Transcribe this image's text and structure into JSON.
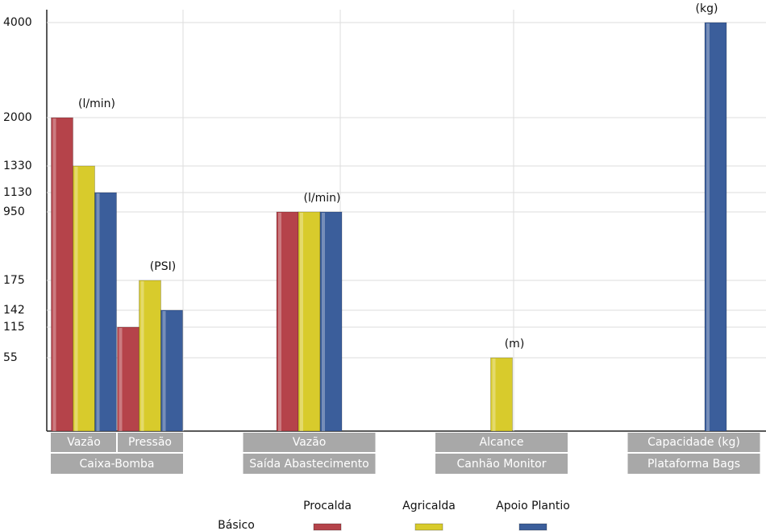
{
  "chart_data": {
    "type": "bar",
    "groups": [
      {
        "name": "Caixa-Bomba",
        "categories": [
          "Vazão",
          "Pressão"
        ]
      },
      {
        "name": "Saída Abastecimento",
        "categories": [
          "Vazão"
        ]
      },
      {
        "name": "Canhão Monitor",
        "categories": [
          "Alcance"
        ]
      },
      {
        "name": "Plataforma Bags",
        "categories": [
          "Capacidade (kg)"
        ]
      }
    ],
    "annotations": [
      "(l/min)",
      "(PSI)",
      "(l/min)",
      "(m)",
      "(kg)"
    ],
    "legend_title": "Básico",
    "series": [
      {
        "name": "Procalda",
        "color": "#b5434a",
        "values": [
          2000,
          115,
          950,
          null,
          null
        ]
      },
      {
        "name": "Agricalda",
        "color": "#d8cb2c",
        "values": [
          1330,
          175,
          950,
          55,
          null
        ]
      },
      {
        "name": "Apoio Plantio",
        "color": "#3b5e9b",
        "values": [
          1130,
          142,
          950,
          null,
          4000
        ]
      }
    ],
    "ylim": [
      0,
      4000
    ],
    "yticks": [
      4000,
      2000,
      1330,
      1130,
      950,
      175,
      142,
      115,
      55
    ],
    "grid": true
  }
}
